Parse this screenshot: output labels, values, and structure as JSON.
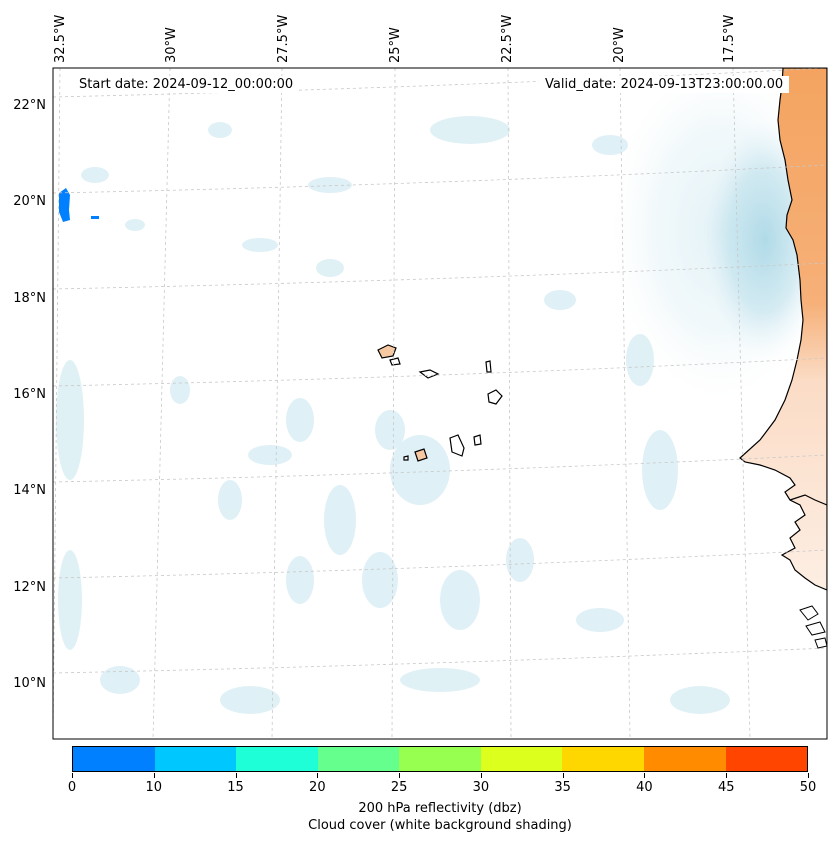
{
  "map": {
    "start_date_label": "Start date: 2024-09-12_00:00:00",
    "valid_date_label": "Valid_date: 2024-09-13T23:00:00.00",
    "longitude_labels": [
      "32.5°W",
      "30°W",
      "27.5°W",
      "25°W",
      "22.5°W",
      "20°W",
      "17.5°W"
    ],
    "latitude_labels": [
      "22°N",
      "20°N",
      "18°N",
      "16°N",
      "14°N",
      "12°N",
      "10°N"
    ],
    "colors": {
      "cloud_cover": "#a9d7e6",
      "land_warm": "#f4a460",
      "island_fill": "#f6c9a3",
      "coastline": "#000000",
      "gridline": "#c8c8c8"
    }
  },
  "colorbar": {
    "ticks": [
      "0",
      "10",
      "15",
      "20",
      "25",
      "30",
      "35",
      "40",
      "45",
      "50"
    ],
    "colors": [
      "#0080ff",
      "#00c8ff",
      "#1effd8",
      "#64ff8c",
      "#96ff50",
      "#dcff1e",
      "#ffd700",
      "#ff8c00",
      "#ff4500"
    ],
    "label_line1": "200 hPa reflectivity (dbz)",
    "label_line2": "Cloud cover (white background shading)"
  }
}
